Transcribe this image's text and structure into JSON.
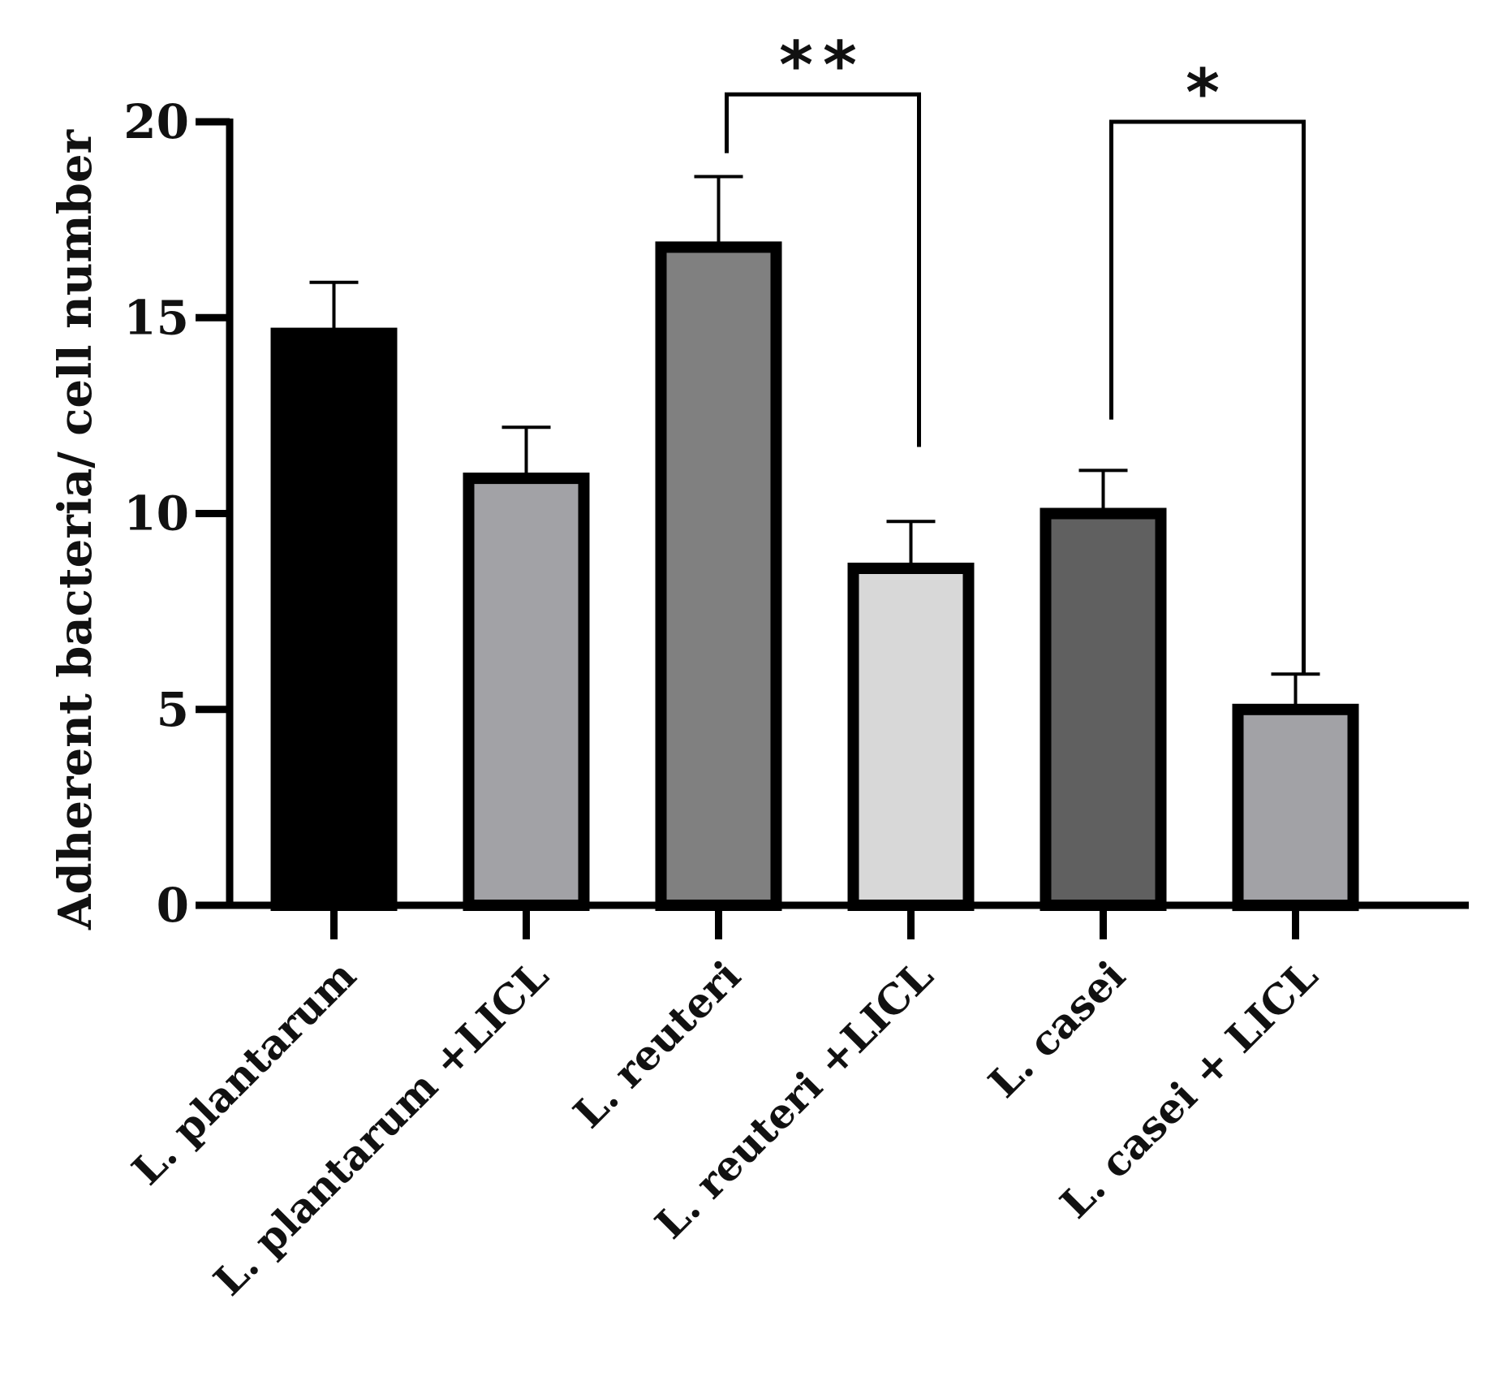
{
  "chart_data": {
    "type": "bar",
    "title": "",
    "xlabel": "",
    "ylabel": "Adherent bacteria/ cell number",
    "ylim": [
      0,
      20
    ],
    "yticks": [
      0,
      5,
      10,
      15,
      20
    ],
    "ytick_labels": [
      "0",
      "5",
      "10",
      "15",
      "20"
    ],
    "categories": [
      "L. plantarum",
      "L. plantarum +LICL",
      "L. reuteri",
      "L. reuteri +LICL",
      "L. casei",
      "L. casei + LICL"
    ],
    "values": [
      14.6,
      10.9,
      16.8,
      8.6,
      10.0,
      5.0
    ],
    "errors": [
      1.3,
      1.3,
      1.8,
      1.2,
      1.1,
      0.9
    ],
    "bar_colors": [
      "#000000",
      "#a2a2a6",
      "#808080",
      "#d8d8d8",
      "#606060",
      "#a2a2a6"
    ],
    "significance": [
      {
        "from_index": 2,
        "to_index": 3,
        "label": "**",
        "bracket_top": 20.7,
        "left_end": 19.2,
        "right_end": 11.7
      },
      {
        "from_index": 4,
        "to_index": 5,
        "label": "*",
        "bracket_top": 20.0,
        "left_end": 12.4,
        "right_end": 5.9
      }
    ],
    "grid": false,
    "legend": "none"
  }
}
